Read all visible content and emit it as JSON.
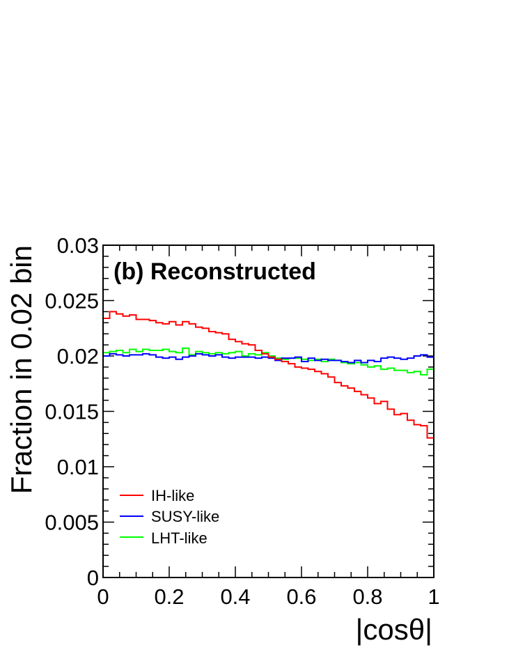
{
  "chart_data": {
    "type": "line",
    "title": "(b) Reconstructed",
    "xlabel": "|cosθ|",
    "ylabel": "Fraction in 0.02 bin",
    "xlim": [
      0,
      1
    ],
    "ylim": [
      0,
      0.03
    ],
    "grid": false,
    "legend_position": "bottom-left",
    "x_tick_labels": [
      "0",
      "0.2",
      "0.4",
      "0.6",
      "0.8",
      "1"
    ],
    "y_tick_labels": [
      "0",
      "0.005",
      "0.01",
      "0.015",
      "0.02",
      "0.025",
      "0.03"
    ],
    "bin_width": 0.02,
    "x": [
      0.0,
      0.02,
      0.04,
      0.06,
      0.08,
      0.1,
      0.12,
      0.14,
      0.16,
      0.18,
      0.2,
      0.22,
      0.24,
      0.26,
      0.28,
      0.3,
      0.32,
      0.34,
      0.36,
      0.38,
      0.4,
      0.42,
      0.44,
      0.46,
      0.48,
      0.5,
      0.52,
      0.54,
      0.56,
      0.58,
      0.6,
      0.62,
      0.64,
      0.66,
      0.68,
      0.7,
      0.72,
      0.74,
      0.76,
      0.78,
      0.8,
      0.82,
      0.84,
      0.86,
      0.88,
      0.9,
      0.92,
      0.94,
      0.96,
      0.98
    ],
    "series": [
      {
        "name": "IH-like",
        "color": "#ff0000",
        "values": [
          0.0234,
          0.024,
          0.0238,
          0.0236,
          0.0237,
          0.0233,
          0.0233,
          0.0232,
          0.023,
          0.0229,
          0.0231,
          0.0228,
          0.0231,
          0.0229,
          0.0226,
          0.0225,
          0.0222,
          0.0221,
          0.022,
          0.0215,
          0.0213,
          0.0211,
          0.021,
          0.0205,
          0.0202,
          0.0199,
          0.0197,
          0.0195,
          0.0193,
          0.019,
          0.0189,
          0.0188,
          0.0186,
          0.0184,
          0.0181,
          0.0176,
          0.0173,
          0.0171,
          0.0168,
          0.0165,
          0.0162,
          0.0157,
          0.0159,
          0.0152,
          0.0147,
          0.0148,
          0.0142,
          0.0138,
          0.0137,
          0.0126
        ]
      },
      {
        "name": "SUSY-like",
        "color": "#0000ff",
        "values": [
          0.02,
          0.0202,
          0.0201,
          0.02,
          0.0201,
          0.0201,
          0.0202,
          0.0201,
          0.0199,
          0.0198,
          0.0199,
          0.0197,
          0.0199,
          0.02,
          0.0202,
          0.0201,
          0.02,
          0.0201,
          0.0199,
          0.0198,
          0.0199,
          0.0199,
          0.0199,
          0.0198,
          0.0199,
          0.0198,
          0.0196,
          0.0198,
          0.0198,
          0.0199,
          0.0195,
          0.0198,
          0.0196,
          0.0197,
          0.0196,
          0.0196,
          0.0195,
          0.0194,
          0.0196,
          0.0194,
          0.0196,
          0.0195,
          0.0198,
          0.0199,
          0.0198,
          0.0197,
          0.0198,
          0.02,
          0.0201,
          0.0199
        ]
      },
      {
        "name": "LHT-like",
        "color": "#00ff00",
        "values": [
          0.0203,
          0.0204,
          0.0205,
          0.0203,
          0.0206,
          0.0204,
          0.0206,
          0.0205,
          0.0205,
          0.0206,
          0.0204,
          0.0203,
          0.0207,
          0.0201,
          0.0204,
          0.0203,
          0.0202,
          0.0203,
          0.0202,
          0.0203,
          0.0204,
          0.02,
          0.0202,
          0.0201,
          0.0203,
          0.02,
          0.0198,
          0.0197,
          0.0198,
          0.0198,
          0.0197,
          0.0196,
          0.0197,
          0.0195,
          0.0197,
          0.0196,
          0.0194,
          0.0193,
          0.0194,
          0.0192,
          0.019,
          0.0191,
          0.0188,
          0.0189,
          0.0187,
          0.0187,
          0.0185,
          0.0186,
          0.0183,
          0.0188
        ]
      }
    ]
  }
}
